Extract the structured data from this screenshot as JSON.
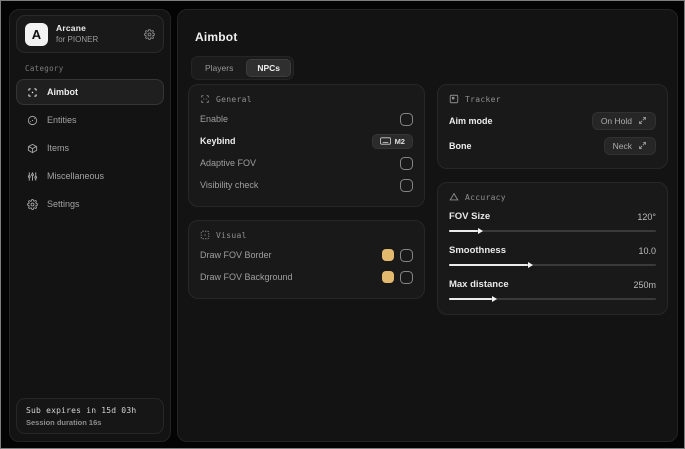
{
  "colors": {
    "accent_swatch": "#e3b96e"
  },
  "sidebar": {
    "brand": {
      "logo_letter": "A",
      "name": "Arcane",
      "subtitle": "for PIONER"
    },
    "category_label": "Category",
    "items": [
      {
        "label": "Aimbot",
        "selected": true
      },
      {
        "label": "Entities",
        "selected": false
      },
      {
        "label": "Items",
        "selected": false
      },
      {
        "label": "Miscellaneous",
        "selected": false
      },
      {
        "label": "Settings",
        "selected": false
      }
    ],
    "footer": {
      "line1": "Sub expires in 15d 03h",
      "line2": "Session duration 16s"
    }
  },
  "main": {
    "title": "Aimbot",
    "tabs": [
      {
        "label": "Players",
        "active": false
      },
      {
        "label": "NPCs",
        "active": true
      }
    ],
    "general": {
      "title": "General",
      "rows": {
        "enable": {
          "label": "Enable",
          "checked": false
        },
        "keybind": {
          "label": "Keybind",
          "value": "M2"
        },
        "adaptive_fov": {
          "label": "Adaptive FOV",
          "checked": false
        },
        "visibility_check": {
          "label": "Visibility check",
          "checked": false
        }
      }
    },
    "visual": {
      "title": "Visual",
      "rows": {
        "fov_border": {
          "label": "Draw FOV Border",
          "color": "#e3b96e",
          "checked": false
        },
        "fov_background": {
          "label": "Draw FOV Background",
          "color": "#e3b96e",
          "checked": false
        }
      }
    },
    "tracker": {
      "title": "Tracker",
      "rows": {
        "aim_mode": {
          "label": "Aim mode",
          "value": "On Hold"
        },
        "bone": {
          "label": "Bone",
          "value": "Neck"
        }
      }
    },
    "accuracy": {
      "title": "Accuracy",
      "sliders": {
        "fov_size": {
          "label": "FOV Size",
          "value": "120°",
          "percent": 14
        },
        "smoothness": {
          "label": "Smoothness",
          "value": "10.0",
          "percent": 38
        },
        "max_distance": {
          "label": "Max distance",
          "value": "250m",
          "percent": 21
        }
      }
    }
  }
}
